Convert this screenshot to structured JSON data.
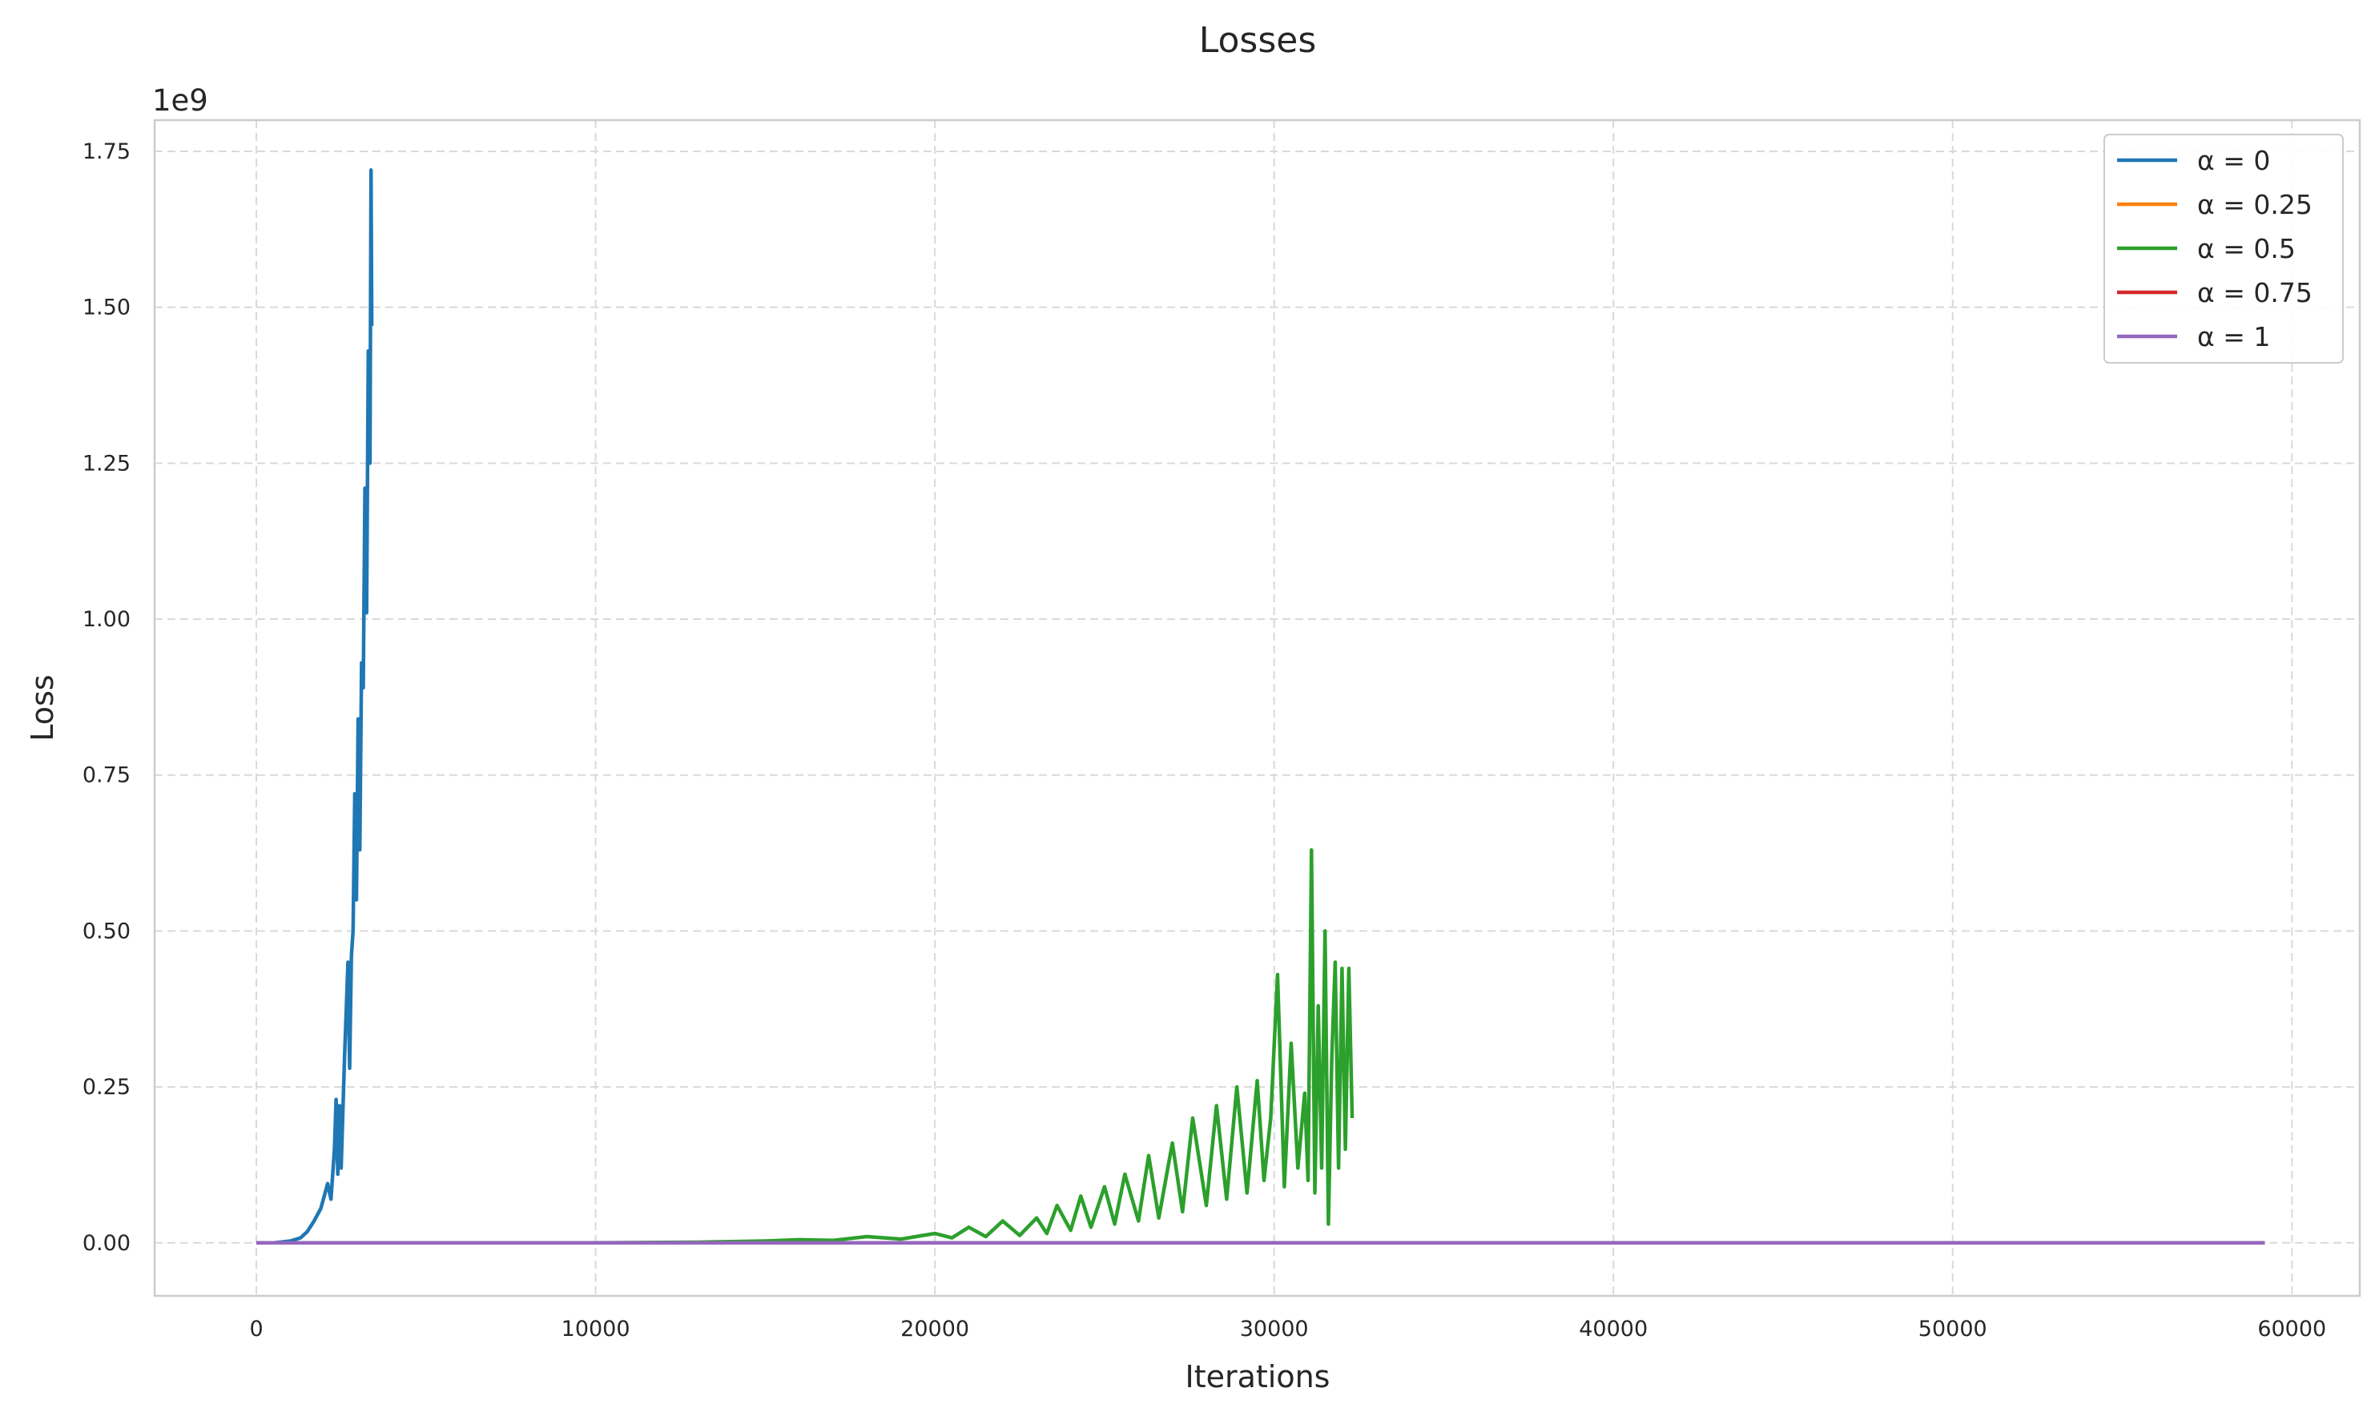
{
  "chart_data": {
    "type": "line",
    "title": "Losses",
    "xlabel": "Iterations",
    "ylabel": "Loss",
    "y_offset_label": "1e9",
    "xlim": [
      -3000,
      62000
    ],
    "ylim": [
      -0.085,
      1.8
    ],
    "x_ticks": [
      0,
      10000,
      20000,
      30000,
      40000,
      50000,
      60000
    ],
    "x_tick_labels": [
      "0",
      "10000",
      "20000",
      "30000",
      "40000",
      "50000",
      "60000"
    ],
    "y_ticks": [
      0,
      0.25,
      0.5,
      0.75,
      1.0,
      1.25,
      1.5,
      1.75
    ],
    "y_tick_labels": [
      "0.00",
      "0.25",
      "0.50",
      "0.75",
      "1.00",
      "1.25",
      "1.50",
      "1.75"
    ],
    "grid": true,
    "legend_position": "top-right",
    "series": [
      {
        "name": "α = 0",
        "color": "#1f77b4",
        "x": [
          0,
          500,
          1000,
          1300,
          1500,
          1700,
          1900,
          2000,
          2100,
          2200,
          2300,
          2350,
          2400,
          2450,
          2500,
          2600,
          2700,
          2750,
          2800,
          2850,
          2900,
          2950,
          3000,
          3050,
          3100,
          3150,
          3200,
          3250,
          3300,
          3350,
          3380,
          3400
        ],
        "y": [
          0.0,
          0.0,
          0.003,
          0.008,
          0.018,
          0.035,
          0.055,
          0.075,
          0.095,
          0.07,
          0.15,
          0.23,
          0.11,
          0.22,
          0.12,
          0.3,
          0.45,
          0.28,
          0.46,
          0.5,
          0.72,
          0.55,
          0.84,
          0.63,
          0.93,
          0.89,
          1.21,
          1.01,
          1.43,
          1.25,
          1.72,
          1.47
        ]
      },
      {
        "name": "α = 0.25",
        "color": "#ff7f0e",
        "x": [
          0,
          59200
        ],
        "y": [
          0.0,
          0.0
        ]
      },
      {
        "name": "α = 0.5",
        "color": "#2ca02c",
        "x": [
          0,
          10000,
          13000,
          14000,
          15000,
          16000,
          17000,
          18000,
          19000,
          20000,
          20500,
          21000,
          21500,
          22000,
          22500,
          23000,
          23300,
          23600,
          24000,
          24300,
          24600,
          25000,
          25300,
          25600,
          26000,
          26300,
          26600,
          27000,
          27300,
          27600,
          28000,
          28300,
          28600,
          28900,
          29200,
          29500,
          29700,
          29900,
          30100,
          30300,
          30500,
          30700,
          30900,
          31000,
          31100,
          31200,
          31300,
          31400,
          31500,
          31600,
          31700,
          31800,
          31900,
          32000,
          32100,
          32200,
          32300
        ],
        "y": [
          0.0,
          0.0,
          0.001,
          0.002,
          0.003,
          0.005,
          0.004,
          0.01,
          0.006,
          0.015,
          0.008,
          0.025,
          0.01,
          0.035,
          0.012,
          0.04,
          0.015,
          0.06,
          0.02,
          0.075,
          0.025,
          0.09,
          0.03,
          0.11,
          0.035,
          0.14,
          0.04,
          0.16,
          0.05,
          0.2,
          0.06,
          0.22,
          0.07,
          0.25,
          0.08,
          0.26,
          0.1,
          0.2,
          0.43,
          0.09,
          0.32,
          0.12,
          0.24,
          0.1,
          0.63,
          0.08,
          0.38,
          0.12,
          0.5,
          0.03,
          0.3,
          0.45,
          0.12,
          0.44,
          0.15,
          0.44,
          0.2
        ]
      },
      {
        "name": "α = 0.75",
        "color": "#d62728",
        "x": [
          0,
          59200
        ],
        "y": [
          0.0,
          0.0
        ]
      },
      {
        "name": "α = 1",
        "color": "#9467bd",
        "x": [
          0,
          59200
        ],
        "y": [
          0.0,
          0.0
        ]
      }
    ]
  }
}
